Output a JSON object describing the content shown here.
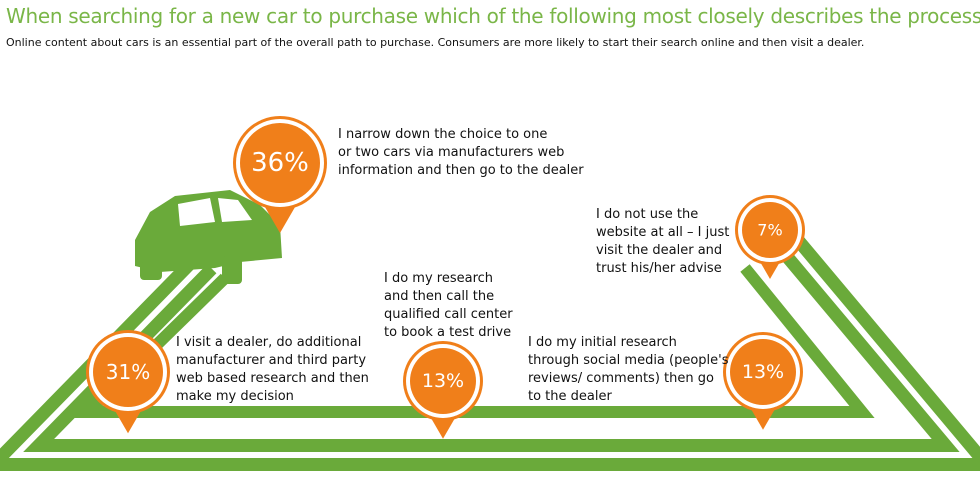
{
  "header": {
    "title": "When searching for a new car to purchase which of the following most closely describes the process you use?",
    "subtitle": "Online content about cars is an essential part of the overall path to purchase. Consumers are more likely to start their search online and then visit a dealer."
  },
  "items": [
    {
      "percent": "36%",
      "lines": [
        "I narrow down the choice to one",
        "or two cars via manufacturers web",
        "information and then go to the dealer"
      ]
    },
    {
      "percent": "31%",
      "lines": [
        "I visit a dealer, do additional",
        "manufacturer and third party",
        "web based research and then",
        "make my decision"
      ]
    },
    {
      "percent": "13%",
      "lines": [
        "I do my research",
        "and then call the",
        "qualified call center",
        "to book a test drive"
      ]
    },
    {
      "percent": "13%",
      "lines": [
        "I do my initial research",
        "through social media (people's",
        "reviews/ comments) then go",
        "to the dealer"
      ]
    },
    {
      "percent": "7%",
      "lines": [
        "I do not use the",
        "website at all – I just",
        "visit the dealer and",
        "trust his/her advise"
      ]
    }
  ]
}
